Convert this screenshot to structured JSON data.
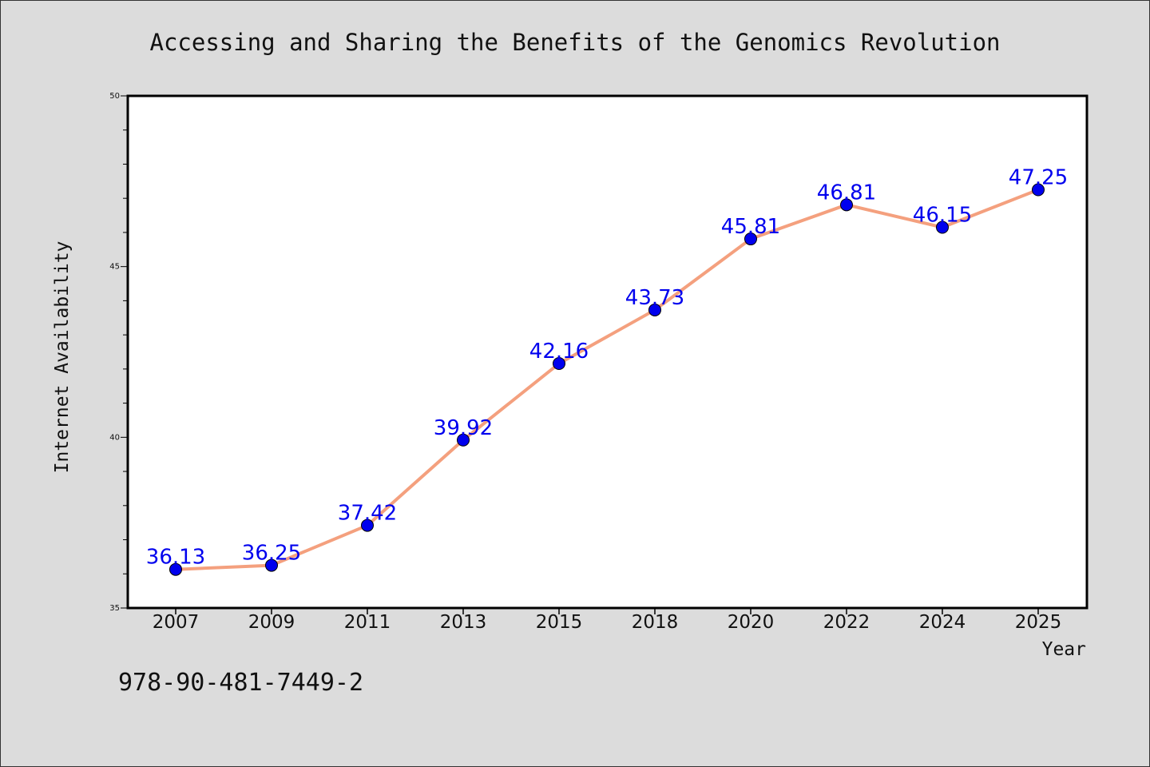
{
  "chart_data": {
    "type": "line",
    "title": "Accessing and Sharing the Benefits of the Genomics Revolution",
    "xlabel": "Year",
    "ylabel": "Internet Availability",
    "categories": [
      "2007",
      "2009",
      "2011",
      "2013",
      "2015",
      "2018",
      "2020",
      "2022",
      "2024",
      "2025"
    ],
    "series": [
      {
        "values": [
          36.13,
          36.25,
          37.42,
          39.92,
          42.16,
          43.73,
          45.81,
          46.81,
          46.15,
          47.25
        ]
      }
    ],
    "data_labels": [
      "36.13",
      "36.25",
      "37.42",
      "39.92",
      "42.16",
      "43.73",
      "45.81",
      "46.81",
      "46.15",
      "47.25"
    ],
    "ylim": [
      35,
      50
    ],
    "yticks": [
      "35",
      "40",
      "45",
      "50"
    ],
    "yminor_step": 1,
    "grid": false,
    "legend": "none",
    "colors": {
      "line": "#f4a07e",
      "marker": "#0000ee",
      "label": "#0000ee",
      "background": "#dcdcdc",
      "plot_background": "#ffffff"
    }
  },
  "footer": {
    "isbn": "978-90-481-7449-2"
  }
}
